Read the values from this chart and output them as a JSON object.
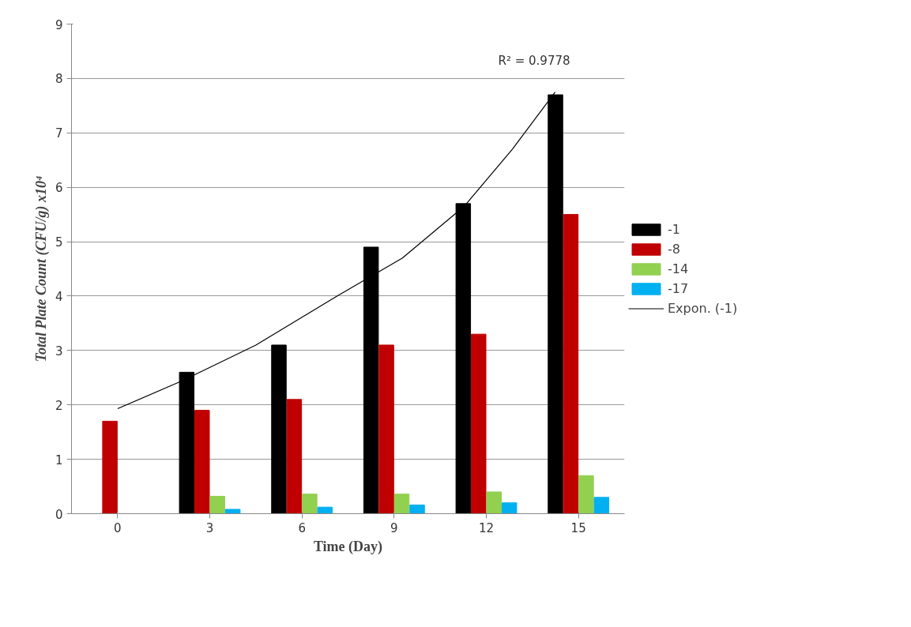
{
  "chart_data": {
    "type": "bar",
    "xlabel": "Time (Day)",
    "ylabel": "Total Plate Count (CFU/g) x10⁴",
    "x": [
      0,
      3,
      6,
      9,
      12,
      15
    ],
    "xlim": [
      -1.5,
      16.5
    ],
    "xticks": [
      0,
      3,
      6,
      9,
      12,
      15
    ],
    "ylim": [
      0,
      9
    ],
    "yticks": [
      0,
      1,
      2,
      3,
      4,
      5,
      6,
      7,
      8,
      9
    ],
    "grid": "y",
    "legend": "right",
    "series": [
      {
        "name": "-1",
        "color": "#000000",
        "values": [
          null,
          2.6,
          3.1,
          4.9,
          5.7,
          7.7
        ]
      },
      {
        "name": "-8",
        "color": "#c00000",
        "values": [
          1.7,
          1.9,
          2.1,
          3.1,
          3.3,
          5.5
        ]
      },
      {
        "name": "-14",
        "color": "#92d050",
        "values": [
          null,
          0.32,
          0.36,
          0.36,
          0.4,
          0.7
        ]
      },
      {
        "name": "-17",
        "color": "#00b0f0",
        "values": [
          null,
          0.08,
          0.12,
          0.16,
          0.2,
          0.3
        ]
      },
      {
        "name": "Expon. (-1)",
        "type": "line",
        "color": "#000000",
        "x": [
          0,
          2.13,
          4.5,
          7.14,
          9.27,
          11.28,
          12.85,
          14.24
        ],
        "values": [
          1.93,
          2.45,
          3.1,
          4.0,
          4.7,
          5.65,
          6.7,
          7.75
        ]
      }
    ],
    "annotations": [
      "R² = 0.9778"
    ]
  }
}
